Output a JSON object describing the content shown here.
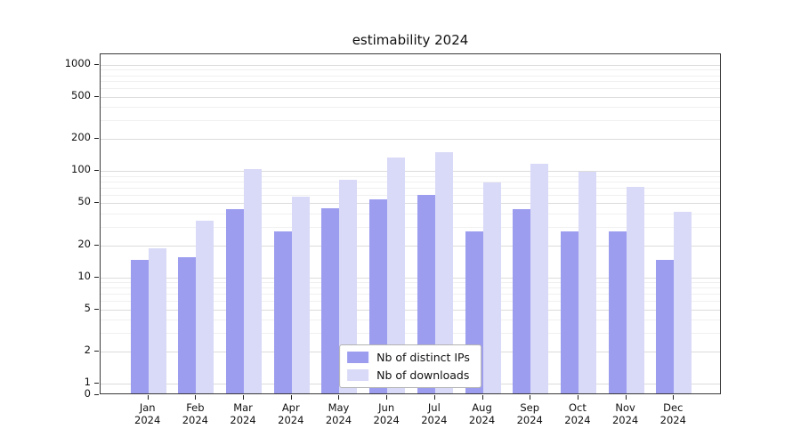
{
  "chart_data": {
    "type": "bar",
    "title": "estimability 2024",
    "categories": [
      "Jan",
      "Feb",
      "Mar",
      "Apr",
      "May",
      "Jun",
      "Jul",
      "Aug",
      "Sep",
      "Oct",
      "Nov",
      "Dec"
    ],
    "year": "2024",
    "series": [
      {
        "name": "Nb of distinct IPs",
        "color": "#9d9df0",
        "values": [
          14,
          15,
          42,
          26,
          43,
          52,
          58,
          26,
          42,
          26,
          26,
          14
        ]
      },
      {
        "name": "Nb of downloads",
        "color": "#d9d9f8",
        "values": [
          18,
          33,
          100,
          55,
          80,
          130,
          145,
          75,
          112,
          95,
          68,
          40
        ]
      }
    ],
    "y_ticks": [
      0,
      1,
      2,
      5,
      10,
      20,
      50,
      100,
      200,
      500,
      1000
    ],
    "y_scale": "log",
    "ylim": [
      0,
      1000
    ],
    "grid": true,
    "legend_position": "lower center"
  }
}
